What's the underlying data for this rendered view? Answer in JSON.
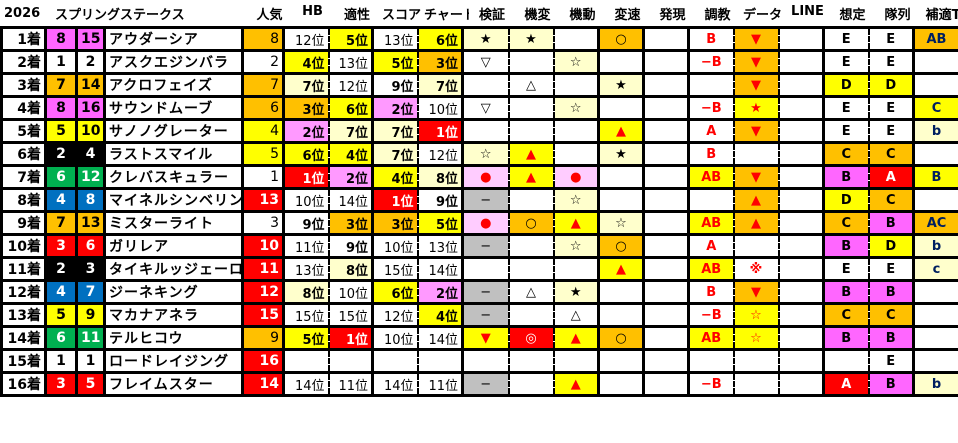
{
  "header": {
    "year": "2026",
    "race": "スプリングステークス",
    "columns": [
      "人気",
      "HB",
      "適性",
      "スコア",
      "チャート",
      "検証",
      "機変",
      "機動",
      "変速",
      "発現",
      "調教",
      "データ",
      "LINE",
      "想定",
      "隊列",
      "補適T"
    ]
  },
  "colors": {
    "W": "#ffffff",
    "O": "#ffc000",
    "Y": "#ffff00",
    "L": "#ffffcc",
    "P": "#ff99ff",
    "M": "#ff66ff",
    "R": "#ff0000",
    "G": "#c0c0c0",
    "K": "#ffccff",
    "text_red": "#ff0000",
    "text_navy": "#002060"
  },
  "waku_colors": {
    "1": [
      "#ffffff",
      "#000000"
    ],
    "2": [
      "#000000",
      "#ffffff"
    ],
    "3": [
      "#ff0000",
      "#ffffff"
    ],
    "4": [
      "#0070c0",
      "#ffffff"
    ],
    "5": [
      "#ffff00",
      "#000000"
    ],
    "6": [
      "#00b050",
      "#ffffff"
    ],
    "7": [
      "#ffc000",
      "#000000"
    ],
    "8": [
      "#ff66ff",
      "#000000"
    ]
  },
  "rows": [
    {
      "pos": "1着",
      "waku": "8",
      "uma": "15",
      "name": "アウダーシア",
      "cells": [
        [
          "8",
          "O"
        ],
        [
          "12位",
          "W"
        ],
        [
          "5位",
          "Y"
        ],
        [
          "13位",
          "W"
        ],
        [
          "6位",
          "Y"
        ],
        [
          "★",
          "L"
        ],
        [
          "★",
          "L"
        ],
        [
          "",
          "W"
        ],
        [
          "○",
          "O"
        ],
        [
          "",
          "W"
        ],
        [
          "B",
          "W"
        ],
        [
          "▼",
          "O"
        ],
        [
          "",
          "W"
        ],
        [
          "E",
          "W"
        ],
        [
          "E",
          "W"
        ],
        [
          "AB",
          "O"
        ]
      ]
    },
    {
      "pos": "2着",
      "waku": "1",
      "uma": "2",
      "name": "アスクエジンバラ",
      "cells": [
        [
          "2",
          "W"
        ],
        [
          "4位",
          "Y"
        ],
        [
          "13位",
          "W"
        ],
        [
          "5位",
          "Y"
        ],
        [
          "3位",
          "O"
        ],
        [
          "▽",
          "W"
        ],
        [
          "",
          "W"
        ],
        [
          "☆",
          "L"
        ],
        [
          "",
          "W"
        ],
        [
          "",
          "W"
        ],
        [
          "−B",
          "W"
        ],
        [
          "▼",
          "O"
        ],
        [
          "",
          "W"
        ],
        [
          "E",
          "W"
        ],
        [
          "E",
          "W"
        ],
        [
          "",
          "W"
        ]
      ]
    },
    {
      "pos": "3着",
      "waku": "7",
      "uma": "14",
      "name": "アクロフェイズ",
      "cells": [
        [
          "7",
          "O"
        ],
        [
          "7位",
          "L"
        ],
        [
          "12位",
          "W"
        ],
        [
          "9位",
          "W"
        ],
        [
          "7位",
          "L"
        ],
        [
          "",
          "W"
        ],
        [
          "△",
          "W"
        ],
        [
          "",
          "W"
        ],
        [
          "★",
          "L"
        ],
        [
          "",
          "W"
        ],
        [
          "",
          "W"
        ],
        [
          "▼",
          "O"
        ],
        [
          "",
          "W"
        ],
        [
          "D",
          "Y"
        ],
        [
          "D",
          "Y"
        ],
        [
          "",
          "W"
        ]
      ]
    },
    {
      "pos": "4着",
      "waku": "8",
      "uma": "16",
      "name": "サウンドムーブ",
      "cells": [
        [
          "6",
          "O"
        ],
        [
          "3位",
          "O"
        ],
        [
          "6位",
          "Y"
        ],
        [
          "2位",
          "P"
        ],
        [
          "10位",
          "W"
        ],
        [
          "▽",
          "W"
        ],
        [
          "",
          "W"
        ],
        [
          "☆",
          "L"
        ],
        [
          "",
          "W"
        ],
        [
          "",
          "W"
        ],
        [
          "−B",
          "W"
        ],
        [
          "★",
          "Y"
        ],
        [
          "",
          "W"
        ],
        [
          "E",
          "W"
        ],
        [
          "E",
          "W"
        ],
        [
          "C",
          "Y"
        ]
      ]
    },
    {
      "pos": "5着",
      "waku": "5",
      "uma": "10",
      "name": "サノノグレーター",
      "cells": [
        [
          "4",
          "Y"
        ],
        [
          "2位",
          "P"
        ],
        [
          "7位",
          "L"
        ],
        [
          "7位",
          "L"
        ],
        [
          "1位",
          "R"
        ],
        [
          "",
          "W"
        ],
        [
          "",
          "W"
        ],
        [
          "",
          "W"
        ],
        [
          "▲",
          "Y"
        ],
        [
          "",
          "W"
        ],
        [
          "A",
          "W"
        ],
        [
          "▼",
          "O"
        ],
        [
          "",
          "W"
        ],
        [
          "E",
          "W"
        ],
        [
          "E",
          "W"
        ],
        [
          "b",
          "L"
        ]
      ]
    },
    {
      "pos": "6着",
      "waku": "2",
      "uma": "4",
      "name": "ラストスマイル",
      "cells": [
        [
          "5",
          "Y"
        ],
        [
          "6位",
          "Y"
        ],
        [
          "4位",
          "Y"
        ],
        [
          "7位",
          "L"
        ],
        [
          "12位",
          "W"
        ],
        [
          "☆",
          "L"
        ],
        [
          "▲",
          "Y"
        ],
        [
          "",
          "W"
        ],
        [
          "★",
          "L"
        ],
        [
          "",
          "W"
        ],
        [
          "B",
          "W"
        ],
        [
          "",
          "W"
        ],
        [
          "",
          "W"
        ],
        [
          "C",
          "O"
        ],
        [
          "C",
          "O"
        ],
        [
          "",
          "W"
        ]
      ]
    },
    {
      "pos": "7着",
      "waku": "6",
      "uma": "12",
      "name": "クレバスキュラー",
      "cells": [
        [
          "1",
          "W"
        ],
        [
          "1位",
          "R"
        ],
        [
          "2位",
          "P"
        ],
        [
          "4位",
          "Y"
        ],
        [
          "8位",
          "L"
        ],
        [
          "●",
          "K"
        ],
        [
          "▲",
          "Y"
        ],
        [
          "●",
          "K"
        ],
        [
          "",
          "W"
        ],
        [
          "",
          "W"
        ],
        [
          "AB",
          "Y"
        ],
        [
          "▼",
          "O"
        ],
        [
          "",
          "W"
        ],
        [
          "B",
          "M"
        ],
        [
          "A",
          "R"
        ],
        [
          "B",
          "Y"
        ]
      ]
    },
    {
      "pos": "8着",
      "waku": "4",
      "uma": "8",
      "name": "マイネルシンベリン",
      "cells": [
        [
          "13",
          "R"
        ],
        [
          "10位",
          "W"
        ],
        [
          "14位",
          "W"
        ],
        [
          "1位",
          "R"
        ],
        [
          "9位",
          "W"
        ],
        [
          "−",
          "G"
        ],
        [
          "",
          "W"
        ],
        [
          "☆",
          "L"
        ],
        [
          "",
          "W"
        ],
        [
          "",
          "W"
        ],
        [
          "",
          "W"
        ],
        [
          "▲",
          "O"
        ],
        [
          "",
          "W"
        ],
        [
          "D",
          "Y"
        ],
        [
          "C",
          "O"
        ],
        [
          "",
          "W"
        ]
      ]
    },
    {
      "pos": "9着",
      "waku": "7",
      "uma": "13",
      "name": "ミスターライト",
      "cells": [
        [
          "3",
          "W"
        ],
        [
          "9位",
          "W"
        ],
        [
          "3位",
          "O"
        ],
        [
          "3位",
          "O"
        ],
        [
          "5位",
          "Y"
        ],
        [
          "●",
          "K"
        ],
        [
          "○",
          "O"
        ],
        [
          "▲",
          "Y"
        ],
        [
          "☆",
          "L"
        ],
        [
          "",
          "W"
        ],
        [
          "AB",
          "Y"
        ],
        [
          "▲",
          "O"
        ],
        [
          "",
          "W"
        ],
        [
          "C",
          "O"
        ],
        [
          "B",
          "M"
        ],
        [
          "AC",
          "O"
        ]
      ]
    },
    {
      "pos": "10着",
      "waku": "3",
      "uma": "6",
      "name": "ガリレア",
      "cells": [
        [
          "10",
          "R"
        ],
        [
          "11位",
          "W"
        ],
        [
          "9位",
          "W"
        ],
        [
          "10位",
          "W"
        ],
        [
          "13位",
          "W"
        ],
        [
          "−",
          "G"
        ],
        [
          "",
          "W"
        ],
        [
          "☆",
          "L"
        ],
        [
          "○",
          "O"
        ],
        [
          "",
          "W"
        ],
        [
          "A",
          "W"
        ],
        [
          "",
          "W"
        ],
        [
          "",
          "W"
        ],
        [
          "B",
          "M"
        ],
        [
          "D",
          "Y"
        ],
        [
          "b",
          "L"
        ]
      ]
    },
    {
      "pos": "11着",
      "waku": "2",
      "uma": "3",
      "name": "タイキルッジェーロ",
      "cells": [
        [
          "11",
          "R"
        ],
        [
          "13位",
          "W"
        ],
        [
          "8位",
          "L"
        ],
        [
          "15位",
          "W"
        ],
        [
          "14位",
          "W"
        ],
        [
          "",
          "W"
        ],
        [
          "",
          "W"
        ],
        [
          "",
          "W"
        ],
        [
          "▲",
          "Y"
        ],
        [
          "",
          "W"
        ],
        [
          "AB",
          "Y"
        ],
        [
          "※",
          "W"
        ],
        [
          "",
          "W"
        ],
        [
          "E",
          "W"
        ],
        [
          "E",
          "W"
        ],
        [
          "c",
          "L"
        ]
      ]
    },
    {
      "pos": "12着",
      "waku": "4",
      "uma": "7",
      "name": "ジーネキング",
      "cells": [
        [
          "12",
          "R"
        ],
        [
          "8位",
          "L"
        ],
        [
          "10位",
          "W"
        ],
        [
          "6位",
          "Y"
        ],
        [
          "2位",
          "P"
        ],
        [
          "−",
          "G"
        ],
        [
          "△",
          "W"
        ],
        [
          "★",
          "L"
        ],
        [
          "",
          "W"
        ],
        [
          "",
          "W"
        ],
        [
          "B",
          "W"
        ],
        [
          "▼",
          "O"
        ],
        [
          "",
          "W"
        ],
        [
          "B",
          "M"
        ],
        [
          "B",
          "M"
        ],
        [
          "",
          "W"
        ]
      ]
    },
    {
      "pos": "13着",
      "waku": "5",
      "uma": "9",
      "name": "マカナアネラ",
      "cells": [
        [
          "15",
          "R"
        ],
        [
          "15位",
          "W"
        ],
        [
          "15位",
          "W"
        ],
        [
          "12位",
          "W"
        ],
        [
          "4位",
          "Y"
        ],
        [
          "−",
          "G"
        ],
        [
          "",
          "W"
        ],
        [
          "△",
          "W"
        ],
        [
          "",
          "W"
        ],
        [
          "",
          "W"
        ],
        [
          "−B",
          "W"
        ],
        [
          "☆",
          "Y"
        ],
        [
          "",
          "W"
        ],
        [
          "C",
          "O"
        ],
        [
          "C",
          "O"
        ],
        [
          "",
          "W"
        ]
      ]
    },
    {
      "pos": "14着",
      "waku": "6",
      "uma": "11",
      "name": "テルヒコウ",
      "cells": [
        [
          "9",
          "O"
        ],
        [
          "5位",
          "Y"
        ],
        [
          "1位",
          "R"
        ],
        [
          "10位",
          "W"
        ],
        [
          "14位",
          "W"
        ],
        [
          "▼",
          "Y"
        ],
        [
          "◎",
          "R"
        ],
        [
          "▲",
          "Y"
        ],
        [
          "○",
          "O"
        ],
        [
          "",
          "W"
        ],
        [
          "AB",
          "Y"
        ],
        [
          "☆",
          "Y"
        ],
        [
          "",
          "W"
        ],
        [
          "B",
          "M"
        ],
        [
          "B",
          "M"
        ],
        [
          "",
          "W"
        ]
      ]
    },
    {
      "pos": "15着",
      "waku": "1",
      "uma": "1",
      "name": "ロードレイジング",
      "cells": [
        [
          "16",
          "R"
        ],
        [
          "",
          "W"
        ],
        [
          "",
          "W"
        ],
        [
          "",
          "W"
        ],
        [
          "",
          "W"
        ],
        [
          "",
          "W"
        ],
        [
          "",
          "W"
        ],
        [
          "",
          "W"
        ],
        [
          "",
          "W"
        ],
        [
          "",
          "W"
        ],
        [
          "",
          "W"
        ],
        [
          "",
          "W"
        ],
        [
          "",
          "W"
        ],
        [
          "",
          "W"
        ],
        [
          "E",
          "W"
        ],
        [
          "",
          "W"
        ]
      ]
    },
    {
      "pos": "16着",
      "waku": "3",
      "uma": "5",
      "name": "フレイムスター",
      "cells": [
        [
          "14",
          "R"
        ],
        [
          "14位",
          "W"
        ],
        [
          "11位",
          "W"
        ],
        [
          "14位",
          "W"
        ],
        [
          "11位",
          "W"
        ],
        [
          "−",
          "G"
        ],
        [
          "",
          "W"
        ],
        [
          "▲",
          "Y"
        ],
        [
          "",
          "W"
        ],
        [
          "",
          "W"
        ],
        [
          "−B",
          "W"
        ],
        [
          "",
          "W"
        ],
        [
          "",
          "W"
        ],
        [
          "A",
          "R"
        ],
        [
          "B",
          "M"
        ],
        [
          "b",
          "L"
        ]
      ]
    }
  ]
}
